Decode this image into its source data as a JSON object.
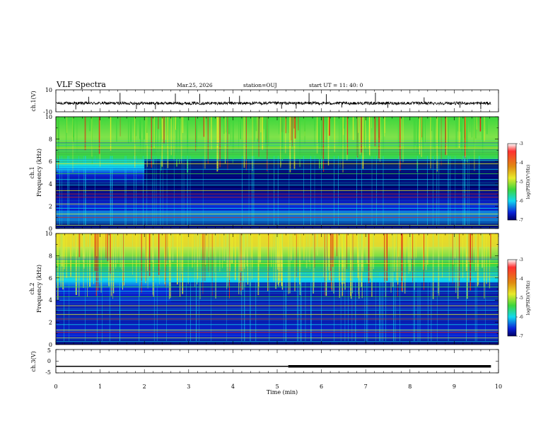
{
  "header": {
    "title": "VLF Spectra",
    "date": "Mar.25, 2026",
    "station": "station=OUJ",
    "start": "start UT = 11: 40: 0"
  },
  "chart_data": [
    {
      "type": "line",
      "name": "ch.1 waveform",
      "ylabel": "ch.1(V)",
      "ylim": [
        -10,
        10
      ],
      "y_ticks": [
        "10",
        "-10"
      ],
      "x_range_min": [
        0,
        9.83
      ],
      "spikes_min": [
        0.45,
        0.74,
        1.45,
        1.82,
        2.25,
        2.7,
        3.25,
        3.92,
        4.15,
        5.1,
        5.43,
        5.72,
        6.11,
        6.46,
        7.22,
        7.5,
        8.32,
        9.13,
        9.6
      ]
    },
    {
      "type": "heatmap",
      "name": "ch.1 spectrogram",
      "ylabel": "ch.1\nFrequency (kHz)",
      "ylabel_top": "ch.1",
      "ylabel_bottom": "Frequency (kHz)",
      "ylim_khz": [
        0,
        10
      ],
      "y_ticks": [
        "0",
        "2",
        "4",
        "6",
        "8",
        "10"
      ],
      "colorbar": {
        "label": "log(PSD)(V²/Hz)",
        "range": [
          -7,
          -3
        ],
        "ticks": [
          "-3",
          "-4",
          "-5",
          "-6",
          "-7"
        ]
      }
    },
    {
      "type": "heatmap",
      "name": "ch.2 spectrogram",
      "ylabel": "ch.2\nFrequency (kHz)",
      "ylabel_top": "ch.2",
      "ylabel_bottom": "Frequency (kHz)",
      "ylim_khz": [
        0,
        10
      ],
      "y_ticks": [
        "0",
        "2",
        "4",
        "6",
        "8",
        "10"
      ],
      "colorbar": {
        "label": "log(PSD)(V²/Hz)",
        "range": [
          -7,
          -3
        ],
        "ticks": [
          "-3",
          "-4",
          "-5",
          "-6",
          "-7"
        ]
      }
    },
    {
      "type": "line",
      "name": "ch.3 signal",
      "ylabel": "ch.3(V)",
      "ylim": [
        -5,
        5
      ],
      "y_ticks": [
        "5",
        "0",
        "-5"
      ],
      "level_v": -2.2,
      "thick_from_min": 5.25,
      "x_end_min": 9.83
    }
  ],
  "xaxis": {
    "label": "Time (min)",
    "range": [
      0,
      10
    ],
    "ticks": [
      "0",
      "1",
      "2",
      "3",
      "4",
      "5",
      "6",
      "7",
      "8",
      "9",
      "10"
    ]
  },
  "colors": {
    "dark": "#000066",
    "blue": "#0a22d8",
    "cyan": "#11d8f0",
    "green": "#3cd63c",
    "yellow": "#e8ea2a",
    "red": "#e02410"
  }
}
